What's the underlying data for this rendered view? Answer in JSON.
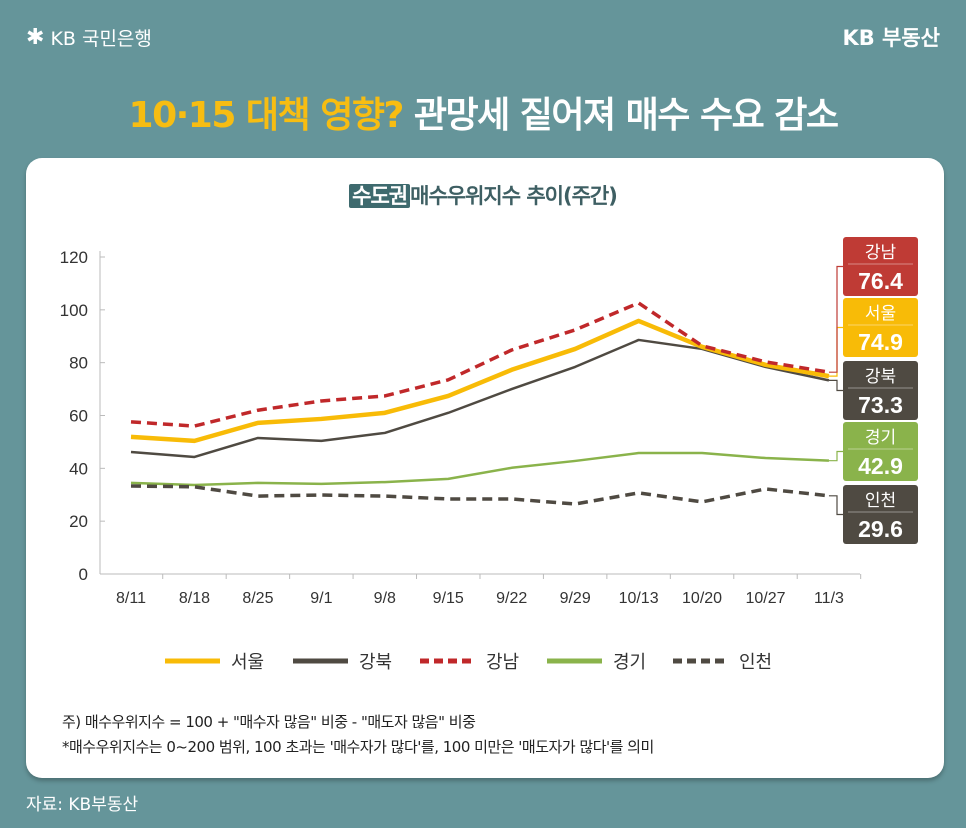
{
  "header": {
    "brand_left": "KB 국민은행",
    "brand_right": "KB 부동산",
    "headline_highlight": "10·15 대책 영향?",
    "headline_rest": "관망세 짙어져 매수 수요 감소"
  },
  "chart_data": {
    "type": "line",
    "title_tag": "수도권",
    "title": "매수우위지수 추이(주간)",
    "xlabel": "",
    "ylabel": "",
    "ylim": [
      0,
      120
    ],
    "yticks": [
      "0",
      "20",
      "40",
      "60",
      "80",
      "100",
      "120"
    ],
    "grid": false,
    "legend_placement": "bottom",
    "categories": [
      "8/11",
      "8/18",
      "8/25",
      "9/1",
      "9/8",
      "9/15",
      "9/22",
      "9/29",
      "10/13",
      "10/20",
      "10/27",
      "11/3"
    ],
    "series": [
      {
        "name": "서울",
        "color": "#f8bb07",
        "style": "solid",
        "values": [
          51.9,
          50.4,
          57.2,
          58.7,
          61.0,
          67.4,
          77.3,
          85.2,
          95.8,
          86.0,
          79.2,
          74.9
        ],
        "end_label": "74.9"
      },
      {
        "name": "강북",
        "color": "#4f4a42",
        "style": "solid",
        "values": [
          46.2,
          44.3,
          51.5,
          50.4,
          53.4,
          61.0,
          70.0,
          78.4,
          88.6,
          85.2,
          78.4,
          73.3
        ],
        "end_label": "73.3"
      },
      {
        "name": "강남",
        "color": "#c0282a",
        "style": "dashed",
        "values": [
          57.6,
          56.0,
          62.0,
          65.5,
          67.4,
          73.5,
          84.8,
          92.4,
          102.6,
          86.4,
          80.3,
          76.4
        ],
        "end_label": "76.4"
      },
      {
        "name": "경기",
        "color": "#8ab34b",
        "style": "solid",
        "values": [
          34.5,
          33.7,
          34.5,
          34.1,
          34.8,
          36.0,
          40.2,
          42.8,
          45.8,
          45.8,
          43.9,
          42.9
        ],
        "end_label": "42.9"
      },
      {
        "name": "인천",
        "color": "#4f4a42",
        "style": "dashed",
        "values": [
          33.3,
          33.0,
          29.5,
          29.9,
          29.5,
          28.4,
          28.4,
          26.5,
          30.7,
          27.3,
          32.2,
          29.6
        ],
        "end_label": "29.6"
      }
    ],
    "label_box_colors": {
      "강남": "#bf3b35",
      "서울": "#f8bb07",
      "강북": "#4f4a42",
      "경기": "#8ab34b",
      "인천": "#4f4a42"
    }
  },
  "notes": {
    "line1": "주) 매수우위지수 = 100 + \"매수자 많음\" 비중 - \"매도자 많음\" 비중",
    "line2": "*매수우위지수는 0~200 범위, 100 초과는 '매수자가 많다'를, 100 미만은 '매도자가 많다'를 의미"
  },
  "source": "자료: KB부동산"
}
